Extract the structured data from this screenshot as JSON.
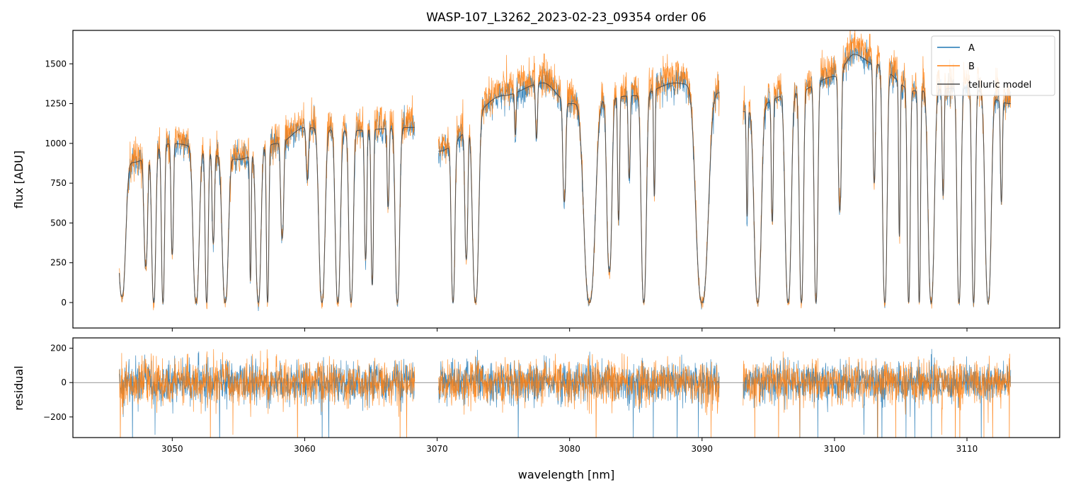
{
  "chart_data": [
    {
      "type": "line",
      "panel": "flux",
      "title": "WASP-107_L3262_2023-02-23_09354  order 06",
      "xlabel": "",
      "ylabel": "flux [ADU]",
      "xlim": [
        3042.5,
        3117.0
      ],
      "ylim": [
        -160,
        1710
      ],
      "yticks": [
        0,
        250,
        500,
        750,
        1000,
        1250,
        1500
      ],
      "ytick_labels": [
        "0",
        "250",
        "500",
        "750",
        "1000",
        "1250",
        "1500"
      ],
      "xticks": [
        3050,
        3060,
        3070,
        3080,
        3090,
        3100,
        3110
      ],
      "grid": false,
      "legend_position": "top-right",
      "segments": [
        [
          3046.0,
          3068.3
        ],
        [
          3070.1,
          3091.3
        ],
        [
          3093.1,
          3113.3
        ]
      ],
      "continuum_knots": [
        [
          3046.0,
          750
        ],
        [
          3047.0,
          880
        ],
        [
          3050.0,
          1000
        ],
        [
          3055.0,
          900
        ],
        [
          3058.0,
          1000
        ],
        [
          3060.0,
          1100
        ],
        [
          3063.0,
          1080
        ],
        [
          3068.3,
          1100
        ],
        [
          3070.1,
          950
        ],
        [
          3075.0,
          1300
        ],
        [
          3078.0,
          1380
        ],
        [
          3080.0,
          1250
        ],
        [
          3085.0,
          1300
        ],
        [
          3088.0,
          1380
        ],
        [
          3091.3,
          1320
        ],
        [
          3093.1,
          1200
        ],
        [
          3097.0,
          1320
        ],
        [
          3100.0,
          1420
        ],
        [
          3101.5,
          1560
        ],
        [
          3103.0,
          1500
        ],
        [
          3106.0,
          1330
        ],
        [
          3110.0,
          1350
        ],
        [
          3113.3,
          1250
        ]
      ],
      "absorption_lines": [
        [
          3046.2,
          0.35,
          0.95
        ],
        [
          3048.0,
          0.18,
          0.75
        ],
        [
          3048.6,
          0.2,
          1.0
        ],
        [
          3049.3,
          0.15,
          1.0
        ],
        [
          3050.0,
          0.12,
          0.7
        ],
        [
          3051.8,
          0.3,
          1.0
        ],
        [
          3052.6,
          0.15,
          1.0
        ],
        [
          3053.1,
          0.12,
          0.6
        ],
        [
          3054.0,
          0.3,
          1.0
        ],
        [
          3055.9,
          0.08,
          0.85
        ],
        [
          3056.5,
          0.25,
          1.0
        ],
        [
          3057.2,
          0.12,
          1.0
        ],
        [
          3058.3,
          0.15,
          0.6
        ],
        [
          3060.2,
          0.12,
          0.3
        ],
        [
          3061.3,
          0.3,
          1.0
        ],
        [
          3062.5,
          0.25,
          1.0
        ],
        [
          3063.5,
          0.22,
          1.0
        ],
        [
          3064.6,
          0.12,
          0.75
        ],
        [
          3065.1,
          0.12,
          0.9
        ],
        [
          3066.3,
          0.1,
          0.45
        ],
        [
          3067.0,
          0.22,
          1.0
        ],
        [
          3071.2,
          0.18,
          1.0
        ],
        [
          3072.2,
          0.15,
          0.75
        ],
        [
          3072.9,
          0.3,
          1.0
        ],
        [
          3075.9,
          0.08,
          0.2
        ],
        [
          3077.5,
          0.1,
          0.25
        ],
        [
          3079.6,
          0.15,
          0.5
        ],
        [
          3081.5,
          0.55,
          1.0
        ],
        [
          3083.0,
          0.25,
          0.85
        ],
        [
          3083.7,
          0.1,
          0.6
        ],
        [
          3084.5,
          0.1,
          0.4
        ],
        [
          3085.6,
          0.25,
          1.0
        ],
        [
          3086.4,
          0.08,
          0.5
        ],
        [
          3090.0,
          0.6,
          1.0
        ],
        [
          3093.4,
          0.08,
          0.55
        ],
        [
          3094.2,
          0.35,
          1.0
        ],
        [
          3095.3,
          0.1,
          0.6
        ],
        [
          3096.5,
          0.3,
          1.0
        ],
        [
          3097.5,
          0.2,
          1.0
        ],
        [
          3098.6,
          0.18,
          1.0
        ],
        [
          3100.4,
          0.15,
          0.6
        ],
        [
          3103.0,
          0.12,
          0.5
        ],
        [
          3103.8,
          0.22,
          1.0
        ],
        [
          3104.9,
          0.08,
          0.7
        ],
        [
          3105.6,
          0.15,
          1.0
        ],
        [
          3106.4,
          0.12,
          1.0
        ],
        [
          3107.3,
          0.3,
          1.0
        ],
        [
          3108.2,
          0.1,
          0.5
        ],
        [
          3109.4,
          0.2,
          1.0
        ],
        [
          3110.5,
          0.18,
          1.0
        ],
        [
          3111.6,
          0.3,
          1.0
        ],
        [
          3112.6,
          0.1,
          0.5
        ]
      ],
      "series": [
        {
          "name": "A",
          "color": "#1f77b4",
          "noise_sigma": 45,
          "band_scale": 1.0
        },
        {
          "name": "B",
          "color": "#ff7f0e",
          "noise_sigma": 60,
          "band_scale": 1.03
        },
        {
          "name": "telluric model",
          "color": "#4d4d4d",
          "noise_sigma": 0,
          "band_scale": 1.0
        }
      ],
      "sampling_step_nm": 0.02
    },
    {
      "type": "line",
      "panel": "residual",
      "title": "",
      "xlabel": "wavelength [nm]",
      "ylabel": "residual",
      "xlim": [
        3042.5,
        3117.0
      ],
      "ylim": [
        -320,
        260
      ],
      "yticks": [
        -200,
        0,
        200
      ],
      "ytick_labels": [
        "−200",
        "0",
        "200"
      ],
      "xticks": [
        3050,
        3060,
        3070,
        3080,
        3090,
        3100,
        3110
      ],
      "xtick_labels": [
        "3050",
        "3060",
        "3070",
        "3080",
        "3090",
        "3100",
        "3110"
      ],
      "zero_line": 0,
      "series": [
        {
          "name": "A",
          "color": "#1f77b4",
          "noise_sigma": 70
        },
        {
          "name": "B",
          "color": "#ff7f0e",
          "noise_sigma": 75
        }
      ]
    }
  ]
}
